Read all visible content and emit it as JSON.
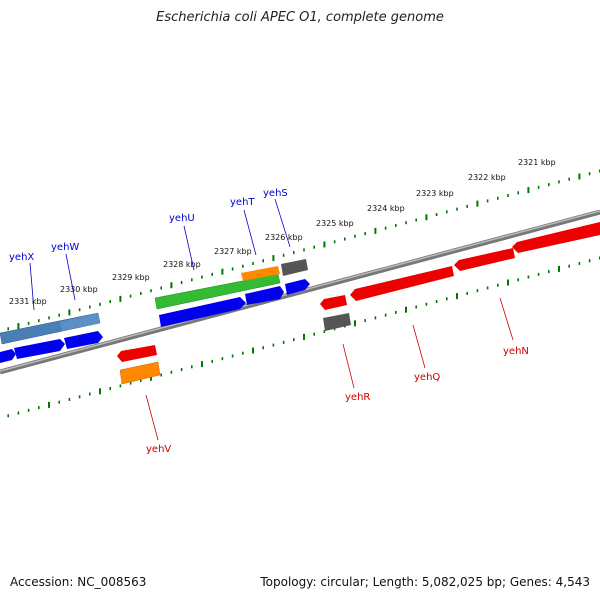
{
  "title": "Escherichia coli APEC O1, complete genome",
  "accession": "Accession: NC_008563",
  "summary": "Topology: circular; Length: 5,082,025 bp; Genes: 4,543",
  "kbp_labels": [
    "2321 kbp",
    "2322 kbp",
    "2323 kbp",
    "2324 kbp",
    "2325 kbp",
    "2326 kbp",
    "2327 kbp",
    "2328 kbp",
    "2329 kbp",
    "2330 kbp",
    "2331 kbp"
  ],
  "genes_forward": [
    {
      "name": "yehX",
      "color": "#0000cc"
    },
    {
      "name": "yehW",
      "color": "#0000cc"
    },
    {
      "name": "yehU",
      "color": "#0000cc"
    },
    {
      "name": "yehT",
      "color": "#0000cc"
    },
    {
      "name": "yehS",
      "color": "#0000cc"
    }
  ],
  "genes_reverse": [
    {
      "name": "yehV",
      "color": "#cc0000"
    },
    {
      "name": "yehR",
      "color": "#cc0000"
    },
    {
      "name": "yehQ",
      "color": "#cc0000"
    },
    {
      "name": "yehN",
      "color": "#cc0000"
    }
  ],
  "colors": {
    "forward_cds": "#0000ee",
    "reverse_cds": "#ee0000",
    "forward_feature_steel": "#4a7fb5",
    "forward_feature_green": "#33bb33",
    "orange_feature": "#ff8800",
    "gray_feature": "#555555",
    "backbone": "#888888",
    "tick": "#007700"
  }
}
